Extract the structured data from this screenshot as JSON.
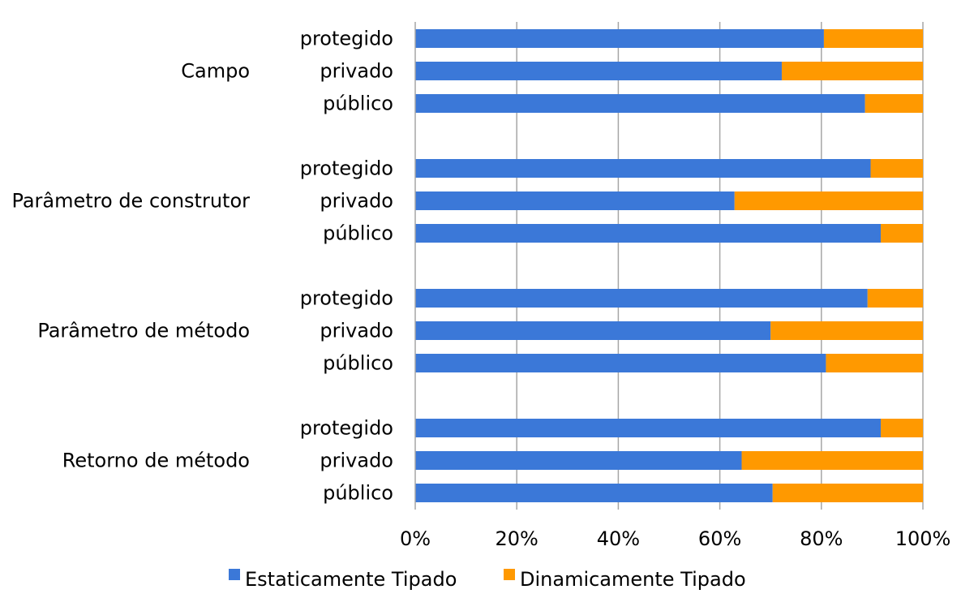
{
  "chart_data": {
    "type": "bar",
    "orientation": "horizontal",
    "stacking": "percent",
    "title": "",
    "xlabel": "",
    "ylabel": "",
    "xlim": [
      0,
      100
    ],
    "x_ticks": [
      "0%",
      "20%",
      "40%",
      "60%",
      "80%",
      "100%"
    ],
    "grid": true,
    "legend": "bottom",
    "groups": [
      {
        "label": "Campo",
        "categories": [
          "protegido",
          "privado",
          "público"
        ]
      },
      {
        "label": "Parâmetro de construtor",
        "categories": [
          "protegido",
          "privado",
          "público"
        ]
      },
      {
        "label": "Parâmetro de método",
        "categories": [
          "protegido",
          "privado",
          "público"
        ]
      },
      {
        "label": "Retorno de método",
        "categories": [
          "protegido",
          "privado",
          "público"
        ]
      }
    ],
    "series": [
      {
        "name": "Estaticamente Tipado",
        "color": "#3b78d8",
        "values": [
          [
            80.5,
            72.2,
            88.6
          ],
          [
            89.7,
            62.9,
            91.7
          ],
          [
            89.1,
            70.0,
            80.9
          ],
          [
            91.7,
            64.3,
            70.4
          ]
        ]
      },
      {
        "name": "Dinamicamente Tipado",
        "color": "#ff9900",
        "values": [
          [
            19.5,
            27.8,
            11.4
          ],
          [
            10.3,
            37.1,
            8.3
          ],
          [
            10.9,
            30.0,
            19.1
          ],
          [
            8.3,
            35.7,
            29.6
          ]
        ]
      }
    ]
  }
}
